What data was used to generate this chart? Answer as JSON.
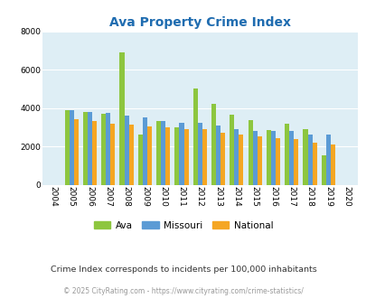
{
  "title": "Ava Property Crime Index",
  "years": [
    2004,
    2005,
    2006,
    2007,
    2008,
    2009,
    2010,
    2011,
    2012,
    2013,
    2014,
    2015,
    2016,
    2017,
    2018,
    2019,
    2020
  ],
  "ava": [
    0,
    3900,
    3800,
    3700,
    6900,
    2600,
    3300,
    3000,
    5000,
    4200,
    3650,
    3350,
    2850,
    3200,
    2900,
    1550,
    0
  ],
  "missouri": [
    0,
    3900,
    3800,
    3750,
    3600,
    3500,
    3300,
    3250,
    3250,
    3100,
    2900,
    2800,
    2800,
    2800,
    2600,
    2600,
    0
  ],
  "national": [
    0,
    3400,
    3300,
    3200,
    3150,
    3050,
    3000,
    2900,
    2900,
    2700,
    2600,
    2500,
    2450,
    2400,
    2200,
    2100,
    0
  ],
  "ava_color": "#8dc63f",
  "missouri_color": "#5b9bd5",
  "national_color": "#f5a623",
  "plot_bg": "#deeef5",
  "ylim": [
    0,
    8000
  ],
  "yticks": [
    0,
    2000,
    4000,
    6000,
    8000
  ],
  "subtitle": "Crime Index corresponds to incidents per 100,000 inhabitants",
  "copyright": "© 2025 CityRating.com - https://www.cityrating.com/crime-statistics/",
  "title_color": "#1f6cb0",
  "subtitle_color": "#333333",
  "copyright_color": "#999999",
  "legend_labels": [
    "Ava",
    "Missouri",
    "National"
  ],
  "bar_width": 0.25
}
